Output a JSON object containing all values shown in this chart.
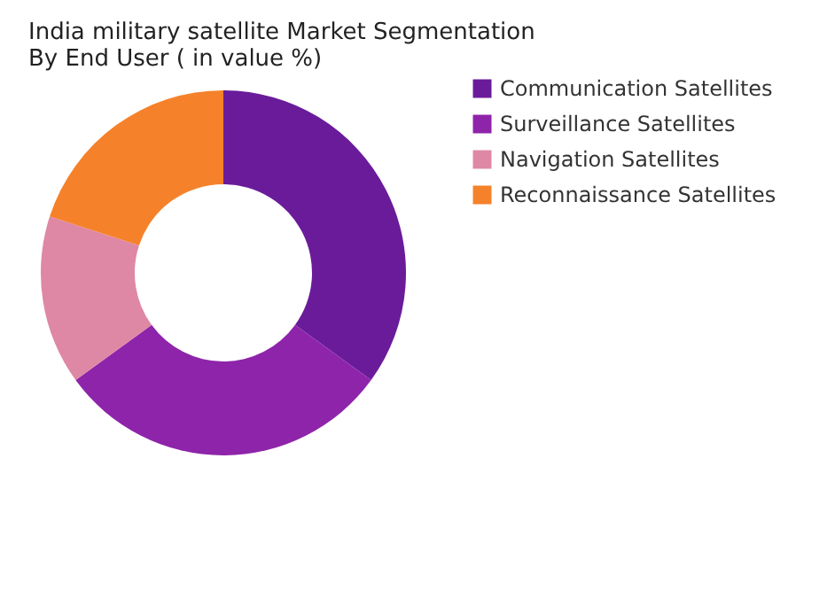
{
  "chart_data": {
    "type": "donut",
    "title": "India military satellite Market Segmentation\nBy End User ( in value %)",
    "categories": [
      "Communication Satellites",
      "Surveillance Satellites",
      "Navigation Satellites",
      "Reconnaissance Satellites"
    ],
    "values": [
      35,
      30,
      15,
      20
    ],
    "colors": [
      "#6a1b9a",
      "#8e24aa",
      "#de88a5",
      "#f5822a"
    ],
    "legend": "right"
  }
}
